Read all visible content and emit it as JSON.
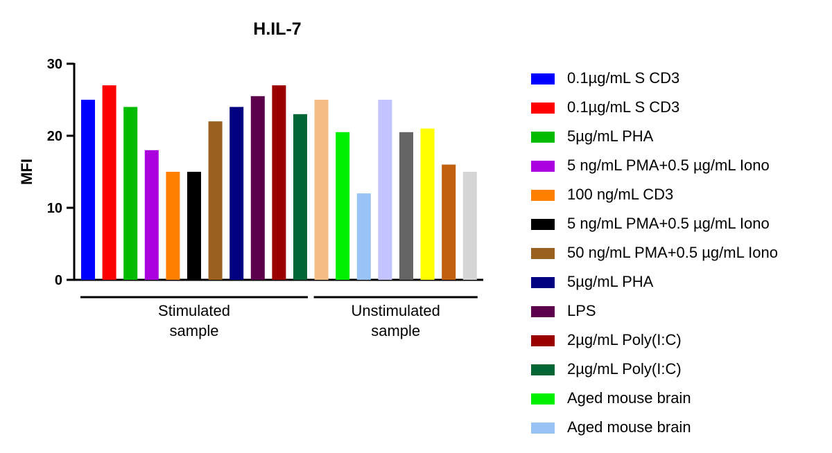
{
  "chart_data": {
    "type": "bar",
    "title": "H.IL-7",
    "ylabel": "MFI",
    "xlabel": "",
    "ylim": [
      0,
      30
    ],
    "yticks": [
      0,
      10,
      20,
      30
    ],
    "grid": false,
    "legend_position": "right",
    "groups": [
      {
        "label": "Stimulated sample",
        "lines": [
          "Stimulated",
          "sample"
        ],
        "from": 0,
        "to": 10
      },
      {
        "label": "Unstimulated sample",
        "lines": [
          "Unstimulated",
          "sample"
        ],
        "from": 11,
        "to": 18
      }
    ],
    "bars": [
      {
        "value": 25,
        "color": "#0000ff"
      },
      {
        "value": 27,
        "color": "#ff0000"
      },
      {
        "value": 24,
        "color": "#00bb00"
      },
      {
        "value": 18,
        "color": "#aa00dd"
      },
      {
        "value": 15,
        "color": "#ff8000"
      },
      {
        "value": 15,
        "color": "#000000"
      },
      {
        "value": 22,
        "color": "#9a6020"
      },
      {
        "value": 24,
        "color": "#000080"
      },
      {
        "value": 25.5,
        "color": "#5c004c"
      },
      {
        "value": 27,
        "color": "#9a0000"
      },
      {
        "value": 23,
        "color": "#006633"
      },
      {
        "value": 25,
        "color": "#f4bd85"
      },
      {
        "value": 20.5,
        "color": "#00ee00"
      },
      {
        "value": 12,
        "color": "#99c2f5"
      },
      {
        "value": 25,
        "color": "#c3c3ff"
      },
      {
        "value": 20.5,
        "color": "#646464"
      },
      {
        "value": 21,
        "color": "#ffff00"
      },
      {
        "value": 16,
        "color": "#c0600c"
      },
      {
        "value": 15,
        "color": "#d5d5d5"
      }
    ],
    "legend": [
      {
        "label": "0.1µg/mL S CD3",
        "color": "#0000ff"
      },
      {
        "label": "0.1µg/mL S CD3",
        "color": "#ff0000"
      },
      {
        "label": "5µg/mL PHA",
        "color": "#00bb00"
      },
      {
        "label": "5 ng/mL PMA+0.5 µg/mL Iono",
        "color": "#aa00dd"
      },
      {
        "label": "100 ng/mL CD3",
        "color": "#ff8000"
      },
      {
        "label": "5 ng/mL PMA+0.5 µg/mL Iono",
        "color": "#000000"
      },
      {
        "label": "50 ng/mL PMA+0.5 µg/mL Iono",
        "color": "#9a6020"
      },
      {
        "label": "5µg/mL PHA",
        "color": "#000080"
      },
      {
        "label": "LPS",
        "color": "#5c004c"
      },
      {
        "label": "2µg/mL Poly(I:C)",
        "color": "#9a0000"
      },
      {
        "label": "2µg/mL Poly(I:C)",
        "color": "#006633"
      },
      {
        "label": "Aged mouse brain",
        "color": "#00ee00"
      },
      {
        "label": "Aged mouse brain",
        "color": "#99c2f5"
      }
    ]
  }
}
